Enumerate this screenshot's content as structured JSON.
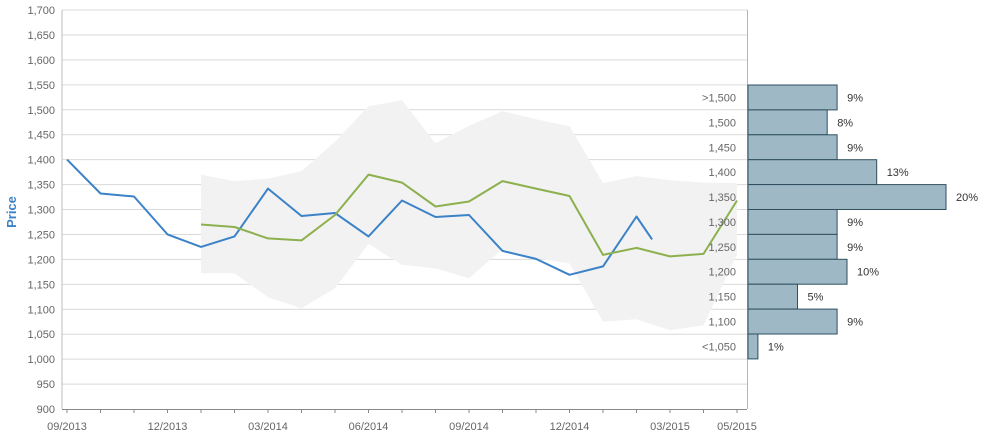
{
  "chart_data": {
    "type": "line",
    "ylabel": "Price",
    "ylim": [
      900,
      1700
    ],
    "y_ticks": [
      "900",
      "950",
      "1,000",
      "1,050",
      "1,100",
      "1,150",
      "1,200",
      "1,250",
      "1,300",
      "1,350",
      "1,400",
      "1,450",
      "1,500",
      "1,550",
      "1,600",
      "1,650",
      "1,700"
    ],
    "x_tick_labels": [
      "09/2013",
      "12/2013",
      "03/2014",
      "06/2014",
      "09/2014",
      "12/2014",
      "03/2015",
      "05/2015"
    ],
    "grid": true,
    "series": [
      {
        "role": "actual",
        "color": "#3b82c8",
        "x": [
          "2013-09",
          "2013-10",
          "2013-11",
          "2013-12",
          "2014-01",
          "2014-02",
          "2014-03",
          "2014-04",
          "2014-05",
          "2014-06",
          "2014-07",
          "2014-08",
          "2014-09",
          "2014-10",
          "2014-11",
          "2014-12",
          "2015-01",
          "2015-02",
          "2015-02-15"
        ],
        "values": [
          1400,
          1332,
          1326,
          1250,
          1225,
          1246,
          1342,
          1287,
          1293,
          1246,
          1318,
          1285,
          1289,
          1217,
          1201,
          1169,
          1186,
          1286,
          1240
        ]
      },
      {
        "role": "forecast",
        "color": "#8db04e",
        "x": [
          "2014-01",
          "2014-02",
          "2014-03",
          "2014-04",
          "2014-05",
          "2014-06",
          "2014-07",
          "2014-08",
          "2014-09",
          "2014-10",
          "2014-11",
          "2014-12",
          "2015-01",
          "2015-02",
          "2015-03",
          "2015-04",
          "2015-05"
        ],
        "values": [
          1270,
          1265,
          1242,
          1238,
          1289,
          1370,
          1354,
          1306,
          1316,
          1357,
          1342,
          1327,
          1209,
          1223,
          1206,
          1211,
          1318
        ]
      }
    ],
    "forecast_band": {
      "color": "#f2f2f2",
      "x": [
        "2014-01",
        "2014-02",
        "2014-03",
        "2014-04",
        "2014-05",
        "2014-06",
        "2014-07",
        "2014-08",
        "2014-09",
        "2014-10",
        "2014-11",
        "2014-12",
        "2015-01",
        "2015-02",
        "2015-03",
        "2015-04",
        "2015-05"
      ],
      "upper": [
        1370,
        1357,
        1362,
        1377,
        1436,
        1507,
        1519,
        1433,
        1468,
        1497,
        1481,
        1467,
        1353,
        1367,
        1359,
        1354,
        1353
      ],
      "lower": [
        1172,
        1172,
        1124,
        1102,
        1142,
        1231,
        1189,
        1182,
        1162,
        1221,
        1202,
        1192,
        1075,
        1080,
        1058,
        1068,
        1210
      ]
    },
    "distribution": {
      "color": "#9fb8c6",
      "buckets": [
        {
          "label": ">1,500",
          "percent": 9,
          "pct_label": "9%"
        },
        {
          "label": "1,500",
          "percent": 8,
          "pct_label": "8%"
        },
        {
          "label": "1,450",
          "percent": 9,
          "pct_label": "9%"
        },
        {
          "label": "1,400",
          "percent": 13,
          "pct_label": "13%"
        },
        {
          "label": "1,350",
          "percent": 20,
          "pct_label": "20%"
        },
        {
          "label": "1,300",
          "percent": 9,
          "pct_label": "9%"
        },
        {
          "label": "1,250",
          "percent": 9,
          "pct_label": "9%"
        },
        {
          "label": "1,200",
          "percent": 10,
          "pct_label": "10%"
        },
        {
          "label": "1,150",
          "percent": 5,
          "pct_label": "5%"
        },
        {
          "label": "1,100",
          "percent": 9,
          "pct_label": "9%"
        },
        {
          "label": "<1,050",
          "percent": 1,
          "pct_label": "1%"
        }
      ]
    }
  }
}
